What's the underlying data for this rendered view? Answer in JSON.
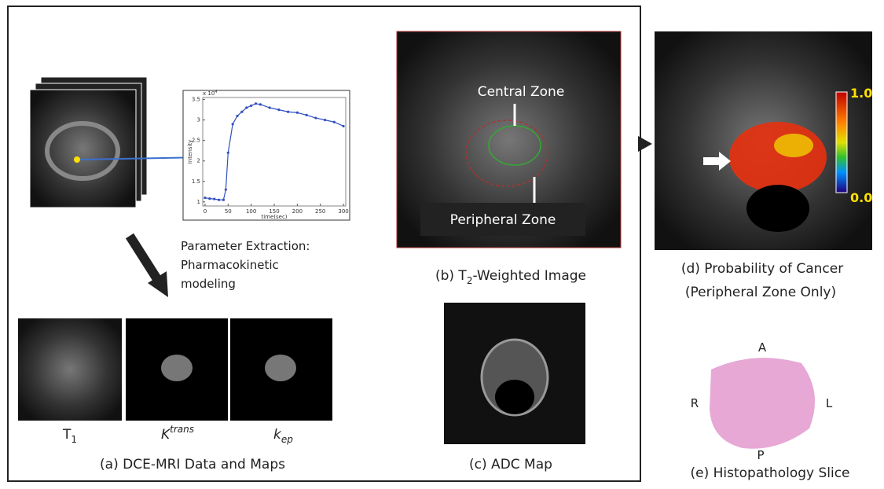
{
  "panel_a": {
    "stack_note": "Parameter Extraction:",
    "note_line2": "Pharmacokinetic",
    "note_line3": "modeling",
    "t1": {
      "base": "T",
      "sub": "1"
    },
    "ktrans": {
      "base": "K",
      "sup": "trans"
    },
    "kep": {
      "base": "k",
      "sub": "ep"
    },
    "caption": "(a) DCE-MRI Data and  Maps"
  },
  "plot": {
    "xlabel": "time(sec)",
    "ylabel": "Intensity",
    "scale": {
      "base": "x 10",
      "sup": "4"
    },
    "xlim": [
      -5,
      305
    ],
    "ylim": [
      0.9,
      3.55
    ],
    "xticks": [
      0,
      50,
      100,
      150,
      200,
      250,
      300
    ],
    "yticks": [
      1,
      1.5,
      2,
      2.5,
      3,
      3.5
    ],
    "x": [
      0,
      10,
      20,
      30,
      40,
      45,
      50,
      60,
      70,
      80,
      90,
      100,
      110,
      120,
      140,
      160,
      180,
      200,
      220,
      240,
      260,
      280,
      300
    ],
    "values": [
      1.1,
      1.08,
      1.07,
      1.05,
      1.05,
      1.3,
      2.2,
      2.9,
      3.1,
      3.2,
      3.3,
      3.35,
      3.4,
      3.38,
      3.3,
      3.25,
      3.2,
      3.18,
      3.12,
      3.05,
      3.0,
      2.95,
      2.85
    ]
  },
  "panel_b": {
    "central": "Central Zone",
    "peripheral": "Peripheral Zone",
    "caption": {
      "prefix": "(b) T",
      "sub": "2",
      "suffix": "-Weighted Image"
    }
  },
  "panel_c": {
    "caption": "(c) ADC Map"
  },
  "panel_d": {
    "caption_line1": "(d) Probability of Cancer",
    "caption_line2": "(Peripheral Zone Only)",
    "colorbar_max": "1.0",
    "colorbar_min": "0.0"
  },
  "panel_e": {
    "caption": "(e) Histopathology Slice",
    "a": "A",
    "r": "R",
    "l": "L",
    "p": "P"
  }
}
